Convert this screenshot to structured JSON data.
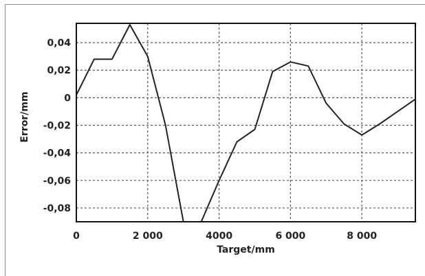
{
  "chart_data": {
    "type": "line",
    "xlabel": "Target/mm",
    "ylabel": "Error/mm",
    "xlim": [
      0,
      9500
    ],
    "ylim": [
      -0.09,
      0.054
    ],
    "x_ticks": [
      0,
      2000,
      4000,
      6000,
      8000
    ],
    "x_tick_labels": [
      "0",
      "2 000",
      "4000",
      "6 000",
      "8 000"
    ],
    "y_ticks": [
      0.04,
      0.02,
      0,
      -0.02,
      -0.04,
      -0.06,
      -0.08
    ],
    "y_tick_labels": [
      "0,04",
      "0,02",
      "0",
      "-0,02",
      "-0,04",
      "-0,06",
      "-0,08"
    ],
    "grid": true,
    "grid_style": "dashed",
    "series": [
      {
        "color": "#222222",
        "x": [
          0,
          500,
          1000,
          1500,
          2000,
          2500,
          3000,
          3500,
          4000,
          4500,
          5000,
          5500,
          6000,
          6500,
          7000,
          7500,
          8000,
          8500,
          9000,
          9500
        ],
        "y": [
          0.002,
          0.028,
          0.028,
          0.053,
          0.03,
          -0.02,
          -0.09,
          -0.09,
          -0.06,
          -0.032,
          -0.023,
          0.019,
          0.026,
          0.023,
          -0.004,
          -0.019,
          -0.027,
          -0.019,
          -0.01,
          -0.001
        ]
      }
    ]
  }
}
